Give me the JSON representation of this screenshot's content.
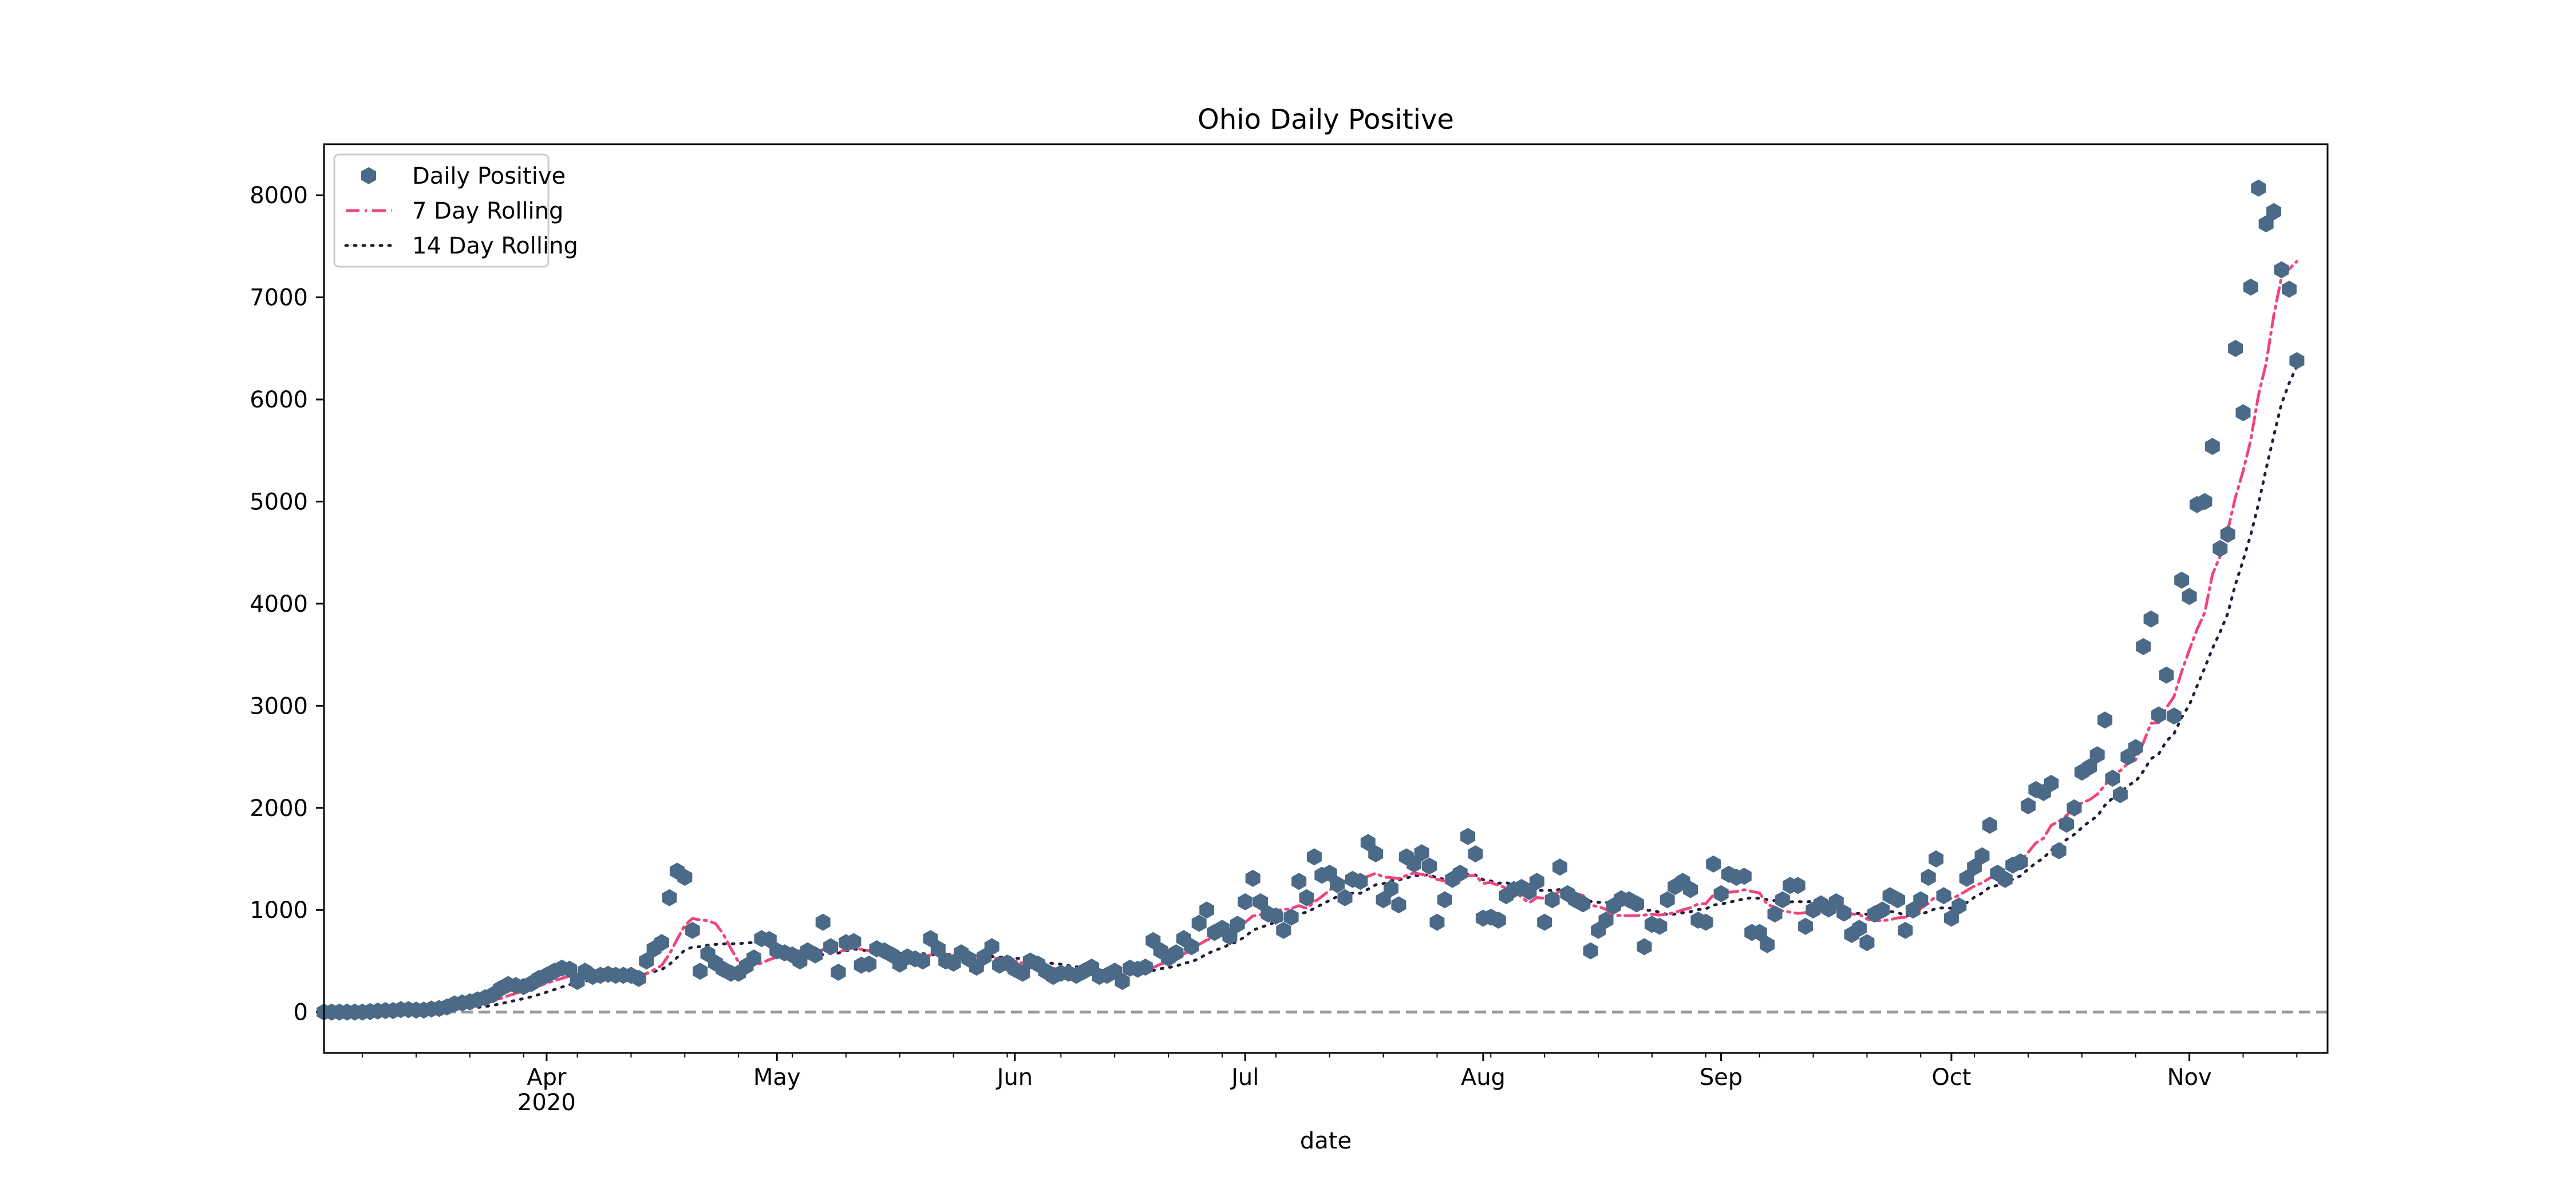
{
  "chart_data": {
    "type": "scatter",
    "title": "Ohio Daily Positive",
    "xlabel": "date",
    "ylabel": "",
    "x_start": "2020-03-03",
    "x_end": "2020-11-19",
    "xlim": [
      "2020-03-03",
      "2020-11-19"
    ],
    "ylim": [
      -400,
      8500
    ],
    "y_ticks": [
      0,
      1000,
      2000,
      3000,
      4000,
      5000,
      6000,
      7000,
      8000
    ],
    "x_ticks": [
      {
        "date": "2020-04-01",
        "label": "Apr",
        "sublabel": "2020"
      },
      {
        "date": "2020-05-01",
        "label": "May",
        "sublabel": ""
      },
      {
        "date": "2020-06-01",
        "label": "Jun",
        "sublabel": ""
      },
      {
        "date": "2020-07-01",
        "label": "Jul",
        "sublabel": ""
      },
      {
        "date": "2020-08-01",
        "label": "Aug",
        "sublabel": ""
      },
      {
        "date": "2020-09-01",
        "label": "Sep",
        "sublabel": ""
      },
      {
        "date": "2020-10-01",
        "label": "Oct",
        "sublabel": ""
      },
      {
        "date": "2020-11-01",
        "label": "Nov",
        "sublabel": ""
      }
    ],
    "grid": false,
    "legend_position": "top-left",
    "reference_line": {
      "y": 0,
      "style": "dashed",
      "color": "#999999"
    },
    "series": [
      {
        "name": "Daily Positive",
        "kind": "scatter",
        "marker": "hexagon",
        "color": "#4a6a88",
        "values": [
          0,
          0,
          0,
          0,
          0,
          0,
          5,
          10,
          15,
          15,
          25,
          25,
          20,
          20,
          30,
          35,
          50,
          80,
          90,
          100,
          120,
          140,
          170,
          230,
          270,
          260,
          250,
          280,
          330,
          360,
          400,
          430,
          420,
          300,
          400,
          350,
          360,
          370,
          360,
          360,
          360,
          330,
          500,
          620,
          680,
          1120,
          1380,
          1320,
          800,
          400,
          570,
          480,
          420,
          380,
          380,
          450,
          530,
          720,
          710,
          600,
          580,
          560,
          500,
          600,
          560,
          880,
          640,
          390,
          680,
          690,
          460,
          470,
          620,
          600,
          560,
          470,
          540,
          520,
          500,
          720,
          620,
          500,
          480,
          580,
          520,
          440,
          540,
          640,
          460,
          480,
          420,
          380,
          500,
          470,
          400,
          350,
          380,
          380,
          360,
          400,
          440,
          350,
          360,
          400,
          300,
          430,
          420,
          440,
          700,
          600,
          530,
          580,
          720,
          640,
          870,
          1000,
          780,
          820,
          740,
          860,
          1080,
          1310,
          1080,
          960,
          940,
          800,
          930,
          1280,
          1120,
          1520,
          1340,
          1360,
          1250,
          1120,
          1300,
          1280,
          1660,
          1550,
          1100,
          1210,
          1050,
          1520,
          1450,
          1560,
          1430,
          880,
          1100,
          1300,
          1360,
          1720,
          1550,
          920,
          930,
          900,
          1140,
          1200,
          1220,
          1180,
          1280,
          880,
          1100,
          1420,
          1160,
          1100,
          1060,
          600,
          800,
          900,
          1040,
          1110,
          1100,
          1060,
          640,
          860,
          840,
          1100,
          1230,
          1280,
          1200,
          900,
          880,
          1450,
          1160,
          1350,
          1320,
          1330,
          780,
          780,
          660,
          960,
          1100,
          1240,
          1240,
          840,
          1000,
          1060,
          1010,
          1080,
          970,
          760,
          820,
          680,
          960,
          1000,
          1140,
          1100,
          800,
          1000,
          1100,
          1320,
          1500,
          1140,
          920,
          1040,
          1310,
          1420,
          1530,
          1830,
          1360,
          1300,
          1440,
          1470,
          2020,
          2180,
          2150,
          2240,
          1580,
          1840,
          2000,
          2350,
          2400,
          2520,
          2860,
          2290,
          2130,
          2500,
          2590,
          3580,
          3850,
          2910,
          3300,
          2900,
          4230,
          4070,
          4970,
          5000,
          5540,
          4540,
          4680,
          6500,
          5870,
          7100,
          8070,
          7720,
          7840,
          7270,
          7080,
          6380
        ]
      },
      {
        "name": "7 Day Rolling",
        "kind": "line",
        "style": "dashdot",
        "color": "#f0457a"
      },
      {
        "name": "14 Day Rolling",
        "kind": "line",
        "style": "dotted",
        "color": "#241b3c"
      }
    ]
  }
}
